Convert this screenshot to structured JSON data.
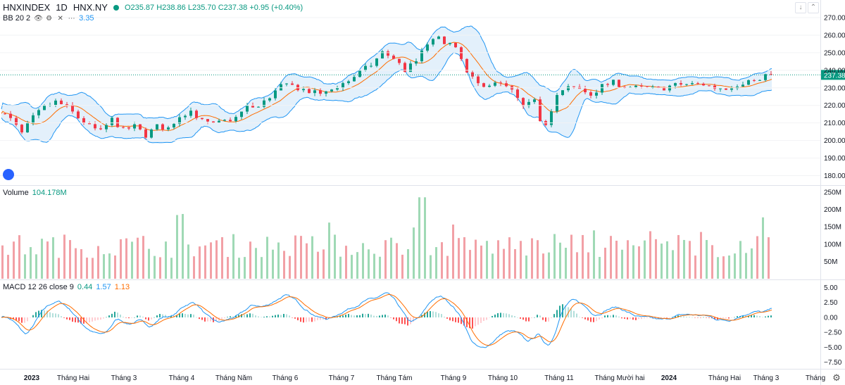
{
  "header": {
    "symbol": "HNXINDEX",
    "interval": "1D",
    "exchange": "HNX.NY",
    "open": "O235.87",
    "high": "H238.86",
    "low": "L235.70",
    "close": "C237.38",
    "change": "+0.95 (+0.40%)"
  },
  "indicators": {
    "bb_label": "BB 20 2",
    "bb_value": "3.35",
    "volume_label": "Volume",
    "volume_value": "104.178M",
    "macd_label": "MACD 12 26 close 9",
    "macd_v1": "0.44",
    "macd_v2": "1.57",
    "macd_v3": "1.13"
  },
  "colors": {
    "up": "#089981",
    "down": "#f23645",
    "vol_up": "#9fd9b5",
    "vol_down": "#f2a0a6",
    "bb_line": "#2196f3",
    "bb_fill": "#e3f0fb",
    "basis": "#ff6d00",
    "macd": "#2196f3",
    "signal": "#ff6d00"
  },
  "chart_data": {
    "type": "candlestick",
    "price_axis": {
      "ticks": [
        180,
        190,
        200,
        210,
        220,
        230,
        240,
        250,
        260,
        270
      ],
      "labels": [
        "180.00",
        "190.00",
        "200.00",
        "210.00",
        "220.00",
        "230.00",
        "240.00",
        "250.00",
        "260.00",
        "270.00"
      ],
      "last_price": "237.38"
    },
    "volume_axis": {
      "ticks": [
        50,
        100,
        150,
        200,
        250
      ],
      "labels": [
        "50M",
        "100M",
        "150M",
        "200M",
        "250M"
      ]
    },
    "macd_axis": {
      "ticks": [
        5,
        2.5,
        0,
        -2.5,
        -5,
        -7.5
      ],
      "labels": [
        "5.00",
        "2.50",
        "0.00",
        "−2.50",
        "−5.00",
        "−7.50"
      ]
    },
    "time_axis": [
      "2023",
      "Tháng Hai",
      "Tháng 3",
      "Tháng 4",
      "Tháng Năm",
      "Tháng 6",
      "Tháng 7",
      "Tháng Tám",
      "Tháng 9",
      "Tháng 10",
      "Tháng 11",
      "Tháng Mười hai",
      "2024",
      "Tháng Hai",
      "Tháng 3",
      "Tháng"
    ],
    "close_anchors": [
      [
        0,
        217
      ],
      [
        8,
        212
      ],
      [
        16,
        204
      ],
      [
        24,
        213
      ],
      [
        32,
        219
      ],
      [
        40,
        222
      ],
      [
        48,
        219
      ],
      [
        56,
        213
      ],
      [
        64,
        208
      ],
      [
        72,
        205
      ],
      [
        80,
        212
      ],
      [
        88,
        206
      ],
      [
        96,
        208
      ],
      [
        104,
        203
      ],
      [
        112,
        208
      ],
      [
        120,
        207
      ],
      [
        128,
        214
      ],
      [
        136,
        217
      ],
      [
        144,
        211
      ],
      [
        152,
        209
      ],
      [
        160,
        211
      ],
      [
        168,
        213
      ],
      [
        176,
        219
      ],
      [
        184,
        219
      ],
      [
        192,
        225
      ],
      [
        200,
        231
      ],
      [
        208,
        231
      ],
      [
        216,
        229
      ],
      [
        224,
        227
      ],
      [
        232,
        227
      ],
      [
        240,
        231
      ],
      [
        248,
        234
      ],
      [
        256,
        239
      ],
      [
        264,
        243
      ],
      [
        272,
        250
      ],
      [
        280,
        247
      ],
      [
        288,
        240
      ],
      [
        296,
        245
      ],
      [
        304,
        255
      ],
      [
        312,
        258
      ],
      [
        320,
        255
      ],
      [
        326,
        250
      ],
      [
        332,
        238
      ],
      [
        340,
        232
      ],
      [
        348,
        232
      ],
      [
        356,
        232
      ],
      [
        364,
        228
      ],
      [
        372,
        219
      ],
      [
        380,
        222
      ],
      [
        384,
        212
      ],
      [
        388,
        210
      ],
      [
        396,
        226
      ],
      [
        404,
        230
      ],
      [
        412,
        229
      ],
      [
        420,
        226
      ],
      [
        428,
        231
      ],
      [
        436,
        233
      ],
      [
        444,
        231
      ],
      [
        452,
        230
      ],
      [
        460,
        230
      ],
      [
        468,
        229
      ],
      [
        476,
        231
      ],
      [
        484,
        232
      ],
      [
        492,
        232
      ],
      [
        500,
        232
      ],
      [
        508,
        230
      ],
      [
        516,
        230
      ],
      [
        524,
        232
      ],
      [
        532,
        234
      ],
      [
        540,
        234
      ],
      [
        547,
        238
      ]
    ]
  }
}
